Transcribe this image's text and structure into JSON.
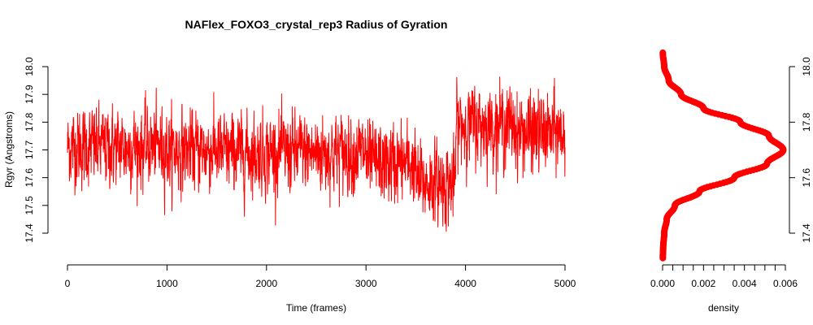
{
  "chart_data": [
    {
      "type": "line",
      "title": "NAFlex_FOXO3_crystal_rep3 Radius of Gyration",
      "xlabel": "Time (frames)",
      "ylabel": "Rgyr (Angstroms)",
      "xlim": [
        0,
        5000
      ],
      "ylim": [
        17.4,
        18.0
      ],
      "x_ticks": [
        "0",
        "1000",
        "2000",
        "3000",
        "4000",
        "5000"
      ],
      "y_ticks": [
        "17.4",
        "17.5",
        "17.6",
        "17.7",
        "17.8",
        "17.9",
        "18.0"
      ],
      "color": "#ff0000",
      "n_frames": 5000,
      "series": [
        {
          "segments": [
            {
              "frames": [
                0,
                500
              ],
              "mean": 17.71,
              "min": 17.42,
              "max": 17.99
            },
            {
              "frames": [
                500,
                1000
              ],
              "mean": 17.71,
              "min": 17.42,
              "max": 17.99
            },
            {
              "frames": [
                1000,
                1500
              ],
              "mean": 17.7,
              "min": 17.41,
              "max": 17.98
            },
            {
              "frames": [
                1500,
                2000
              ],
              "mean": 17.69,
              "min": 17.4,
              "max": 17.98
            },
            {
              "frames": [
                2000,
                2500
              ],
              "mean": 17.69,
              "min": 17.41,
              "max": 17.94
            },
            {
              "frames": [
                2500,
                3000
              ],
              "mean": 17.69,
              "min": 17.42,
              "max": 17.98
            },
            {
              "frames": [
                3000,
                3500
              ],
              "mean": 17.65,
              "min": 17.43,
              "max": 17.94
            },
            {
              "frames": [
                3500,
                3900
              ],
              "mean": 17.58,
              "min": 17.33,
              "max": 17.86
            },
            {
              "frames": [
                3900,
                4500
              ],
              "mean": 17.79,
              "min": 17.53,
              "max": 18.04
            },
            {
              "frames": [
                4500,
                5000
              ],
              "mean": 17.76,
              "min": 17.58,
              "max": 18.02
            }
          ]
        }
      ]
    },
    {
      "type": "line",
      "xlabel": "density",
      "xlim": [
        0,
        0.006
      ],
      "ylim": [
        17.4,
        18.0
      ],
      "x_ticks": [
        "0.000",
        "0.002",
        "0.004",
        "0.006"
      ],
      "y_ticks": [
        "17.4",
        "17.6",
        "17.8",
        "18.0"
      ],
      "color": "#ff0000",
      "series": [
        {
          "y": [
            17.31,
            17.35,
            17.4,
            17.45,
            17.5,
            17.55,
            17.6,
            17.65,
            17.7,
            17.75,
            17.8,
            17.85,
            17.9,
            17.95,
            18.0,
            18.05
          ],
          "x": [
            1e-05,
            3e-05,
            8e-05,
            0.0002,
            0.0006,
            0.0018,
            0.0035,
            0.0051,
            0.0059,
            0.0052,
            0.0038,
            0.002,
            0.0009,
            0.0003,
            8e-05,
            1e-05
          ]
        }
      ]
    }
  ]
}
